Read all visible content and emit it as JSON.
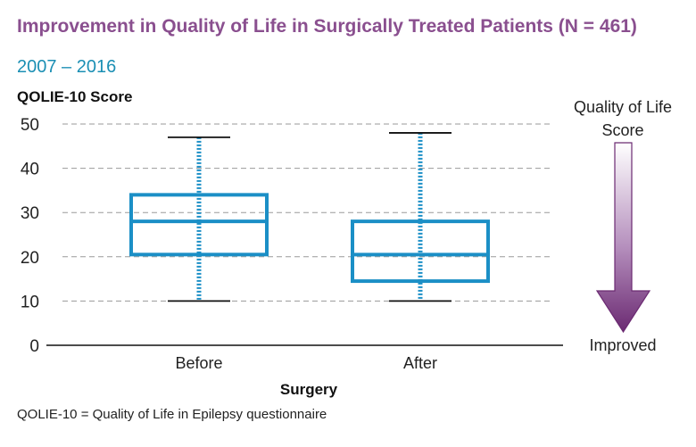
{
  "title": "Improvement in Quality of Life in Surgically Treated Patients (N = 461)",
  "subtitle": "2007 – 2016",
  "footnote": "QOLIE-10 = Quality of Life in Epilepsy questionnaire",
  "legend": {
    "top_label": "Quality of Life Score",
    "bottom_label": "Improved",
    "arrow_color": "#6b2a72"
  },
  "colors": {
    "box": "#1b8fc6",
    "title": "#8a4f8f",
    "subtitle": "#1b8fb4",
    "grid": "#9a9a9a"
  },
  "chart_data": {
    "type": "boxplot",
    "title": "Improvement in Quality of Life in Surgically Treated Patients (N = 461)",
    "subtitle": "2007 – 2016",
    "xlabel": "Surgery",
    "ylabel": "QOLIE-10 Score",
    "ylim": [
      0,
      50
    ],
    "yticks": [
      0,
      10,
      20,
      30,
      40,
      50
    ],
    "grid": true,
    "categories": [
      "Before",
      "After"
    ],
    "boxes": [
      {
        "category": "Before",
        "min": 10,
        "q1": 20.5,
        "median": 28,
        "q3": 34,
        "max": 47
      },
      {
        "category": "After",
        "min": 10,
        "q1": 14.5,
        "median": 20.5,
        "q3": 28,
        "max": 48
      }
    ]
  }
}
